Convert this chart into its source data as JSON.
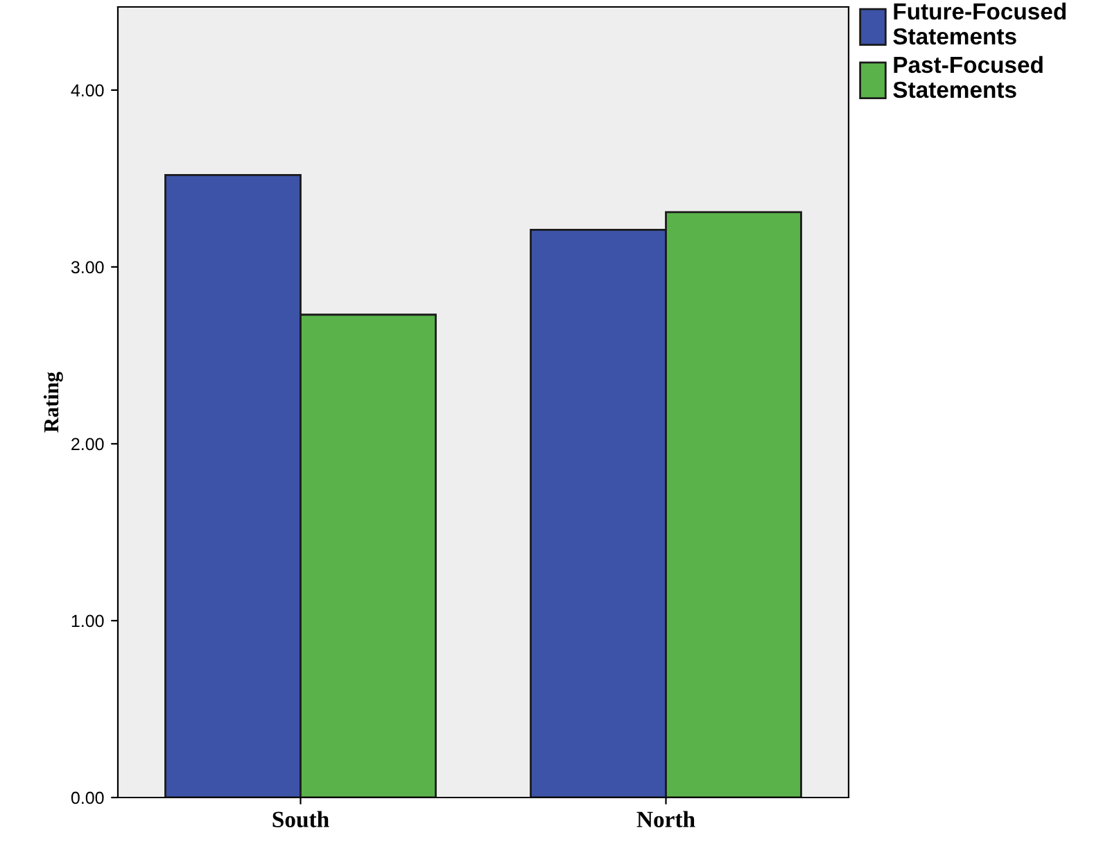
{
  "chart_data": {
    "type": "bar",
    "ylabel": "Rating",
    "categories": [
      "South",
      "North"
    ],
    "series": [
      {
        "name": "Future-Focused\nStatements",
        "color": "#3c53a8",
        "values": [
          3.52,
          3.21
        ]
      },
      {
        "name": "Past-Focused\nStatements",
        "color": "#5ab34a",
        "values": [
          2.73,
          3.31
        ]
      }
    ],
    "ylim": [
      0,
      4.47
    ],
    "yticks": [
      {
        "value": 0,
        "label": "0.00"
      },
      {
        "value": 1,
        "label": "1.00"
      },
      {
        "value": 2,
        "label": "2.00"
      },
      {
        "value": 3,
        "label": "3.00"
      },
      {
        "value": 4,
        "label": "4.00"
      }
    ],
    "grid": false,
    "legend": "top right"
  }
}
